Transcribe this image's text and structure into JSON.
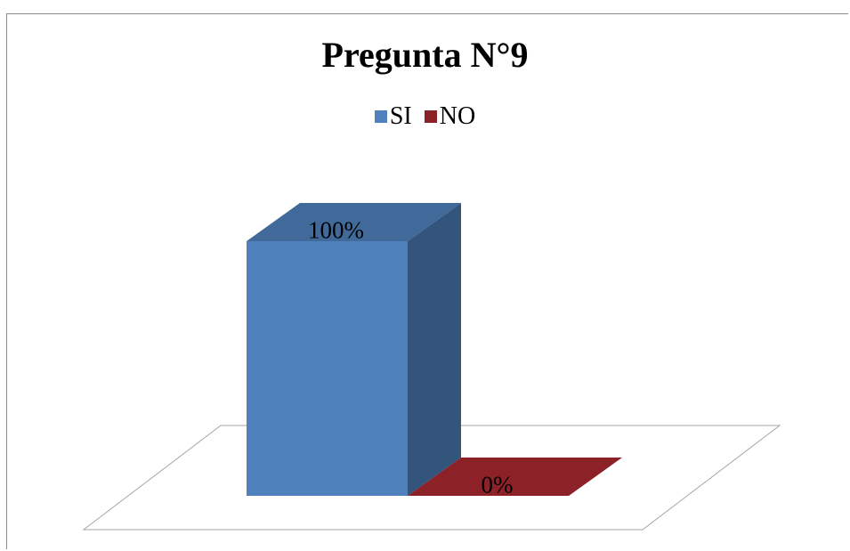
{
  "chart_data": {
    "type": "bar",
    "style": "3d-column",
    "title": "Pregunta N°9",
    "categories": [
      "SI",
      "NO"
    ],
    "values": [
      100,
      0
    ],
    "value_labels": [
      "100%",
      "0%"
    ],
    "colors": {
      "SI": "#4f81bd",
      "NO": "#8c2128"
    },
    "legend": {
      "position": "top",
      "entries": [
        "SI",
        "NO"
      ]
    },
    "xlabel": "",
    "ylabel": "",
    "ylim": [
      0,
      100
    ],
    "grid": false
  }
}
